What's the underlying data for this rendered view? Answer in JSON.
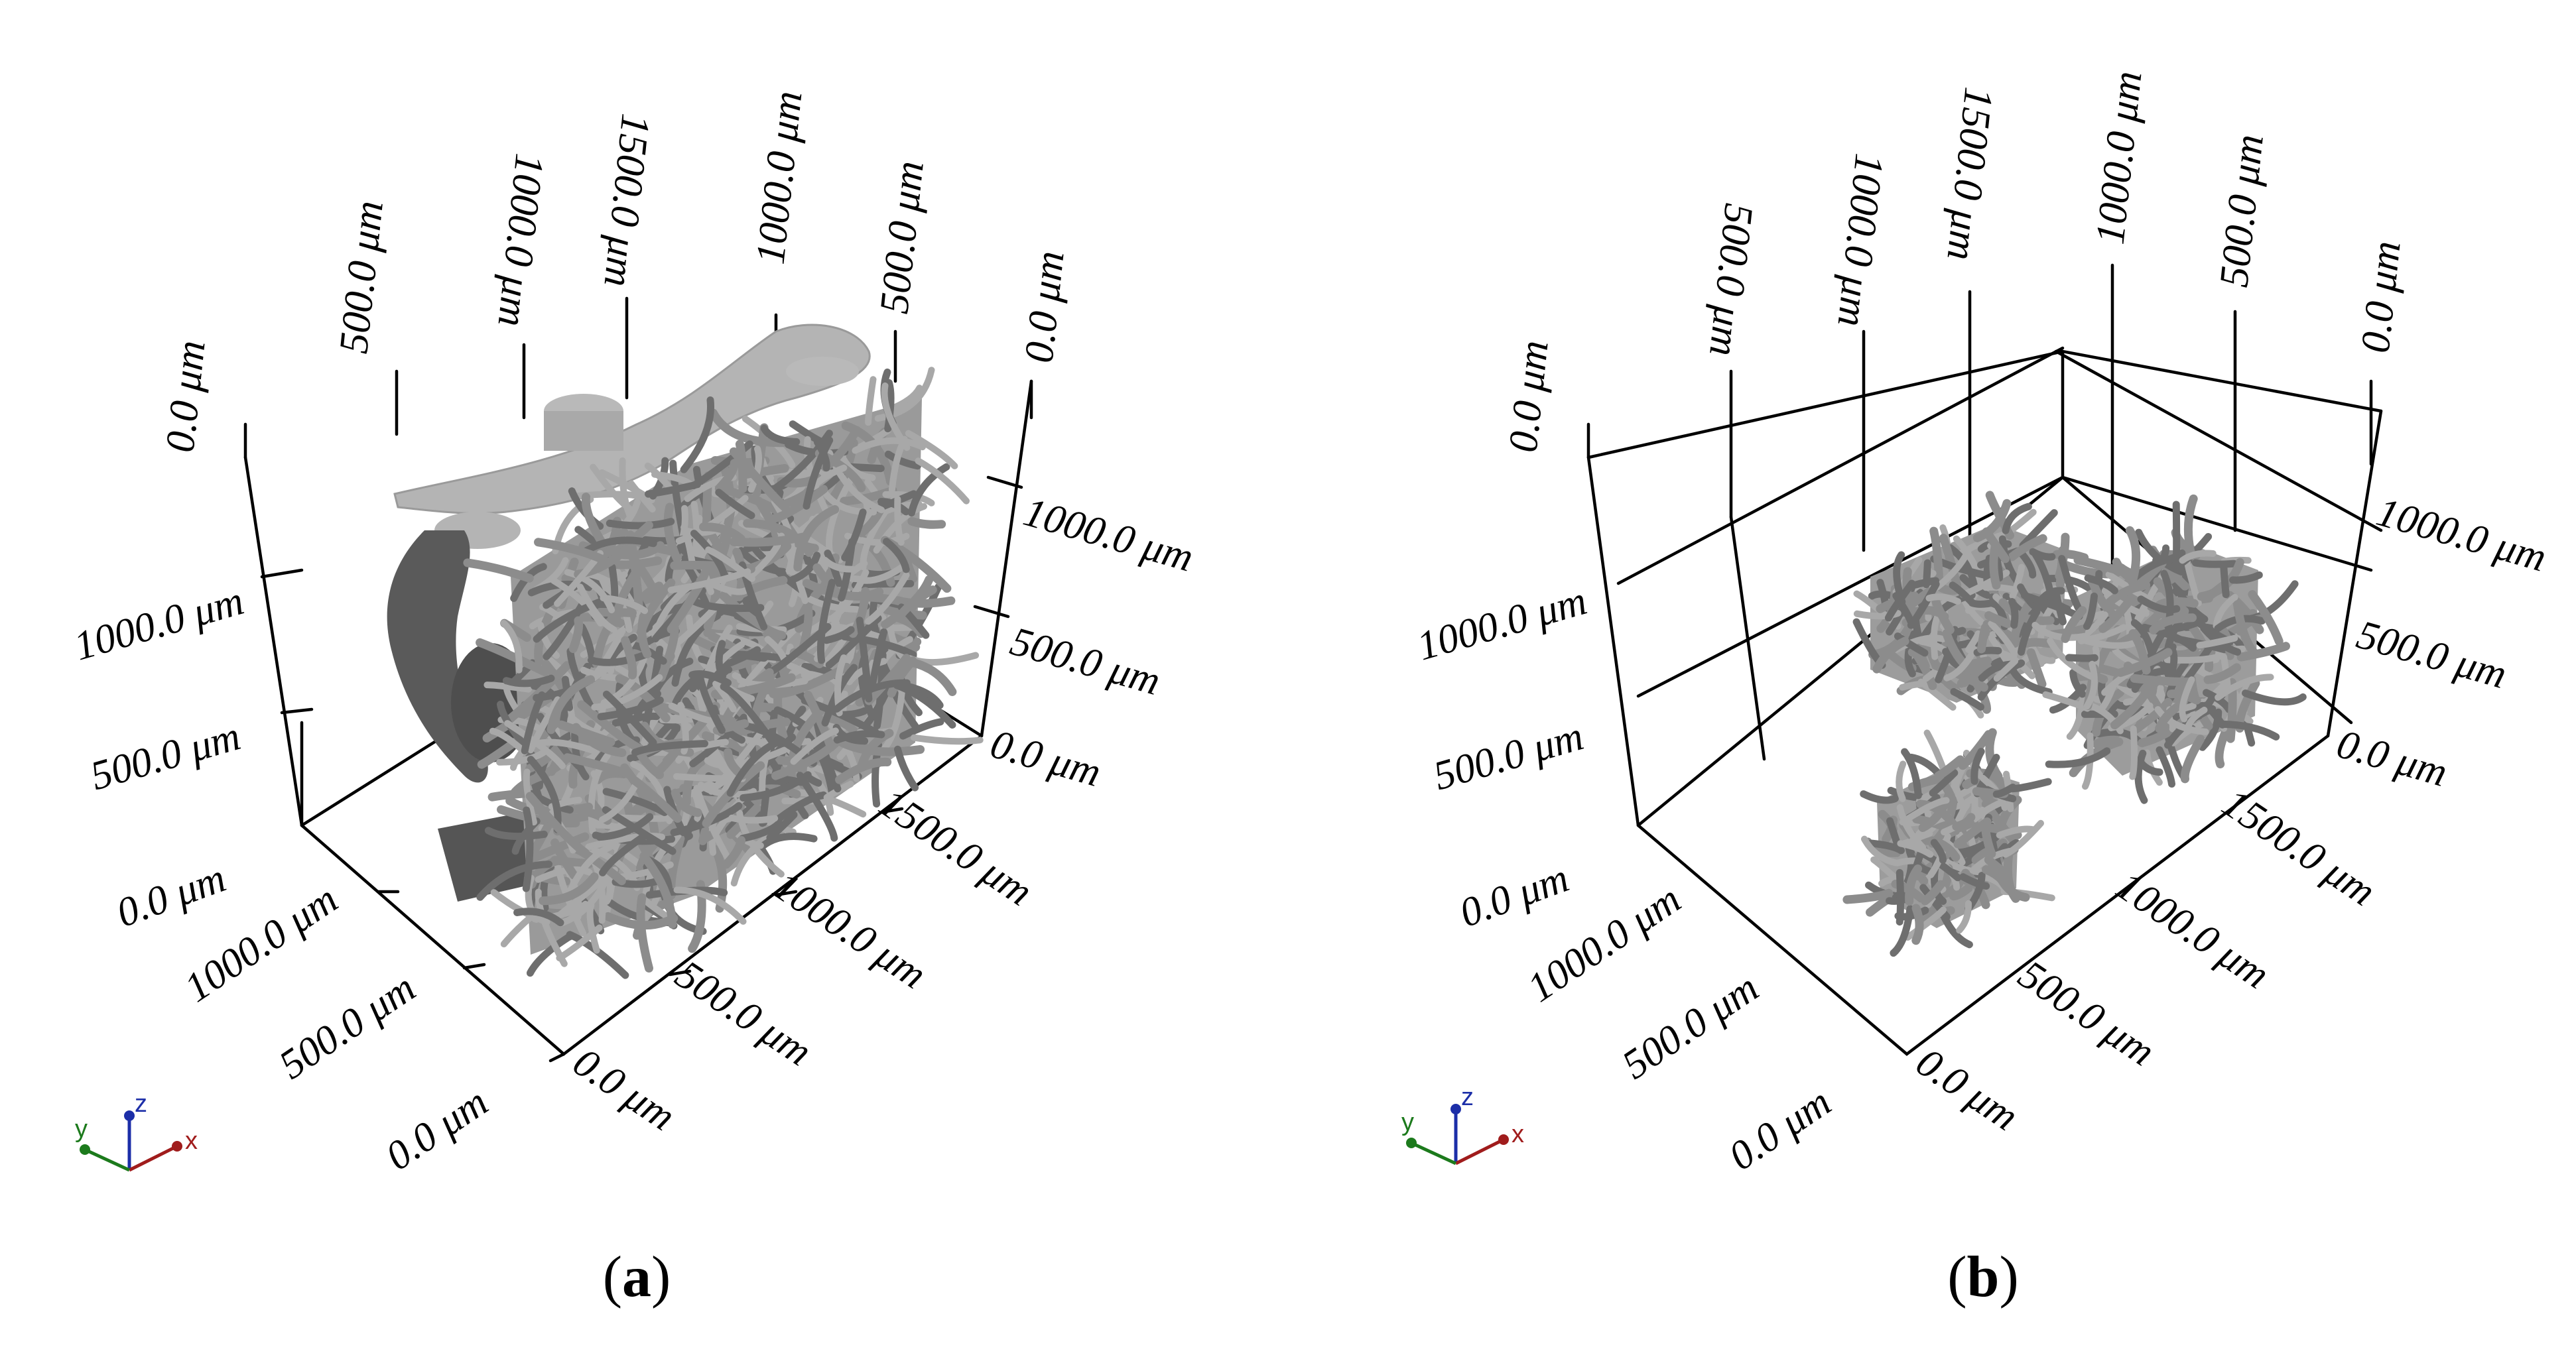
{
  "panels": [
    {
      "id": "a",
      "caption_paren_open": "(",
      "caption_letter": "a",
      "caption_paren_close": ")",
      "z_ticks": [
        "0.0 μm",
        "500.0 μm",
        "1000.0 μm"
      ],
      "x_ticks": [
        "0.0 μm",
        "500.0 μm",
        "1000.0 μm",
        "1500.0 μm"
      ],
      "y_ticks": [
        "0.0 μm",
        "500.0 μm",
        "1000.0 μm"
      ],
      "top_back_labels": [
        "0.0 μm",
        "500.0 μm",
        "1000.0 μm",
        "1500.0 μm"
      ],
      "top_right_labels": [
        "1000.0 μm",
        "500.0 μm",
        "0.0 μm"
      ],
      "right_z_labels": [
        "1000.0 μm",
        "500.0 μm",
        "0.0 μm"
      ]
    },
    {
      "id": "b",
      "caption_paren_open": "(",
      "caption_letter": "b",
      "caption_paren_close": ")",
      "z_ticks": [
        "0.0 μm",
        "500.0 μm",
        "1000.0 μm"
      ],
      "x_ticks": [
        "0.0 μm",
        "500.0 μm",
        "1000.0 μm",
        "1500.0 μm"
      ],
      "y_ticks": [
        "0.0 μm",
        "500.0 μm",
        "1000.0 μm"
      ],
      "top_back_labels": [
        "0.0 μm",
        "500.0 μm",
        "1000.0 μm",
        "1500.0 μm"
      ],
      "top_right_labels": [
        "1000.0 μm",
        "500.0 μm",
        "0.0 μm"
      ],
      "right_z_labels": [
        "1000.0 μm",
        "500.0 μm",
        "0.0 μm"
      ]
    }
  ],
  "triad": {
    "x_label": "x",
    "y_label": "y",
    "z_label": "z",
    "x_color": "#a01c1c",
    "y_color": "#1c7a1c",
    "z_color": "#1c2ea8"
  }
}
